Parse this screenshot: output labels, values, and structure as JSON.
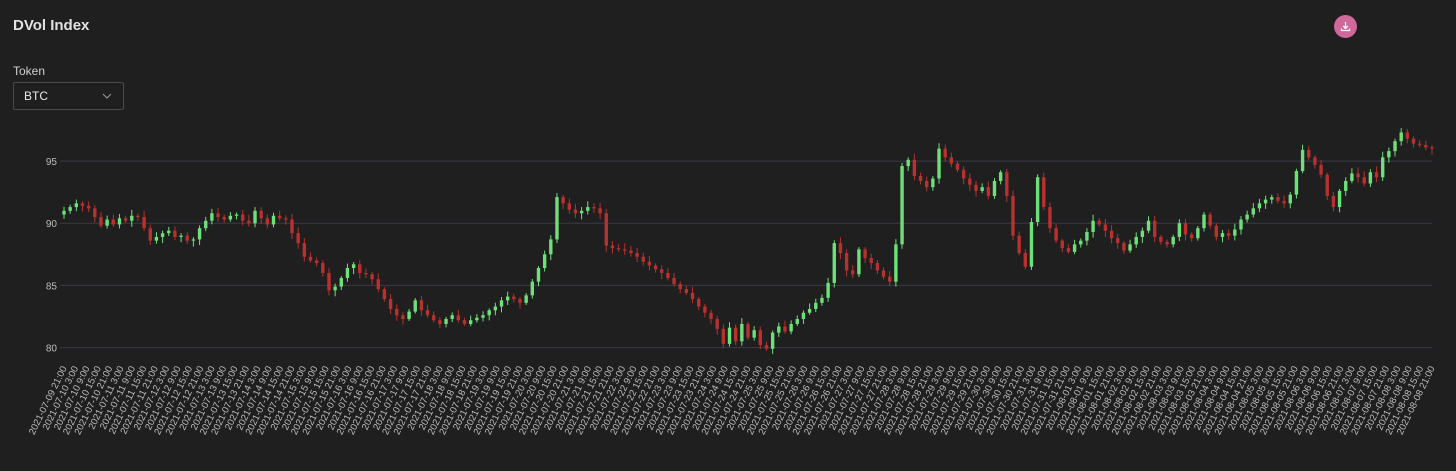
{
  "header": {
    "title": "DVol Index",
    "download_icon": "download-icon"
  },
  "filter": {
    "label": "Token",
    "selected": "BTC"
  },
  "colors": {
    "up": "#6ee07a",
    "down": "#b8312f",
    "grid": "#3a3a4a",
    "text": "#bdbdbd",
    "download_bg": "#d0689c"
  },
  "chart_data": {
    "type": "candlestick",
    "title": "DVol Index",
    "ylim": [
      79,
      97.5
    ],
    "yticks": [
      80,
      85,
      90,
      95
    ],
    "grid": "horizontal",
    "x_start": "2021-07-09 21:00",
    "x_end": "2021-08-08 21:00",
    "x_tick_interval_hours": 6,
    "close_series": [
      91.0,
      91.3,
      91.6,
      91.4,
      91.2,
      90.5,
      89.8,
      90.3,
      89.9,
      90.4,
      90.2,
      90.6,
      90.5,
      89.6,
      88.6,
      88.9,
      89.2,
      89.4,
      88.9,
      89.0,
      88.6,
      88.7,
      89.6,
      90.2,
      90.8,
      90.5,
      90.3,
      90.6,
      90.7,
      90.2,
      90.0,
      91.0,
      90.4,
      89.9,
      90.6,
      90.4,
      90.3,
      89.2,
      88.4,
      87.3,
      87.0,
      86.8,
      86.0,
      84.6,
      84.9,
      85.6,
      86.4,
      86.7,
      86.0,
      85.9,
      85.5,
      84.7,
      83.9,
      83.1,
      82.6,
      82.3,
      82.9,
      83.8,
      83.0,
      82.6,
      82.2,
      81.9,
      82.3,
      82.6,
      82.2,
      81.9,
      82.2,
      82.4,
      82.6,
      83.0,
      83.3,
      83.8,
      84.1,
      83.9,
      83.6,
      84.2,
      85.3,
      86.4,
      87.5,
      88.7,
      92.1,
      91.6,
      91.1,
      90.8,
      91.0,
      91.3,
      91.2,
      90.8,
      88.2,
      88.0,
      87.9,
      87.8,
      87.6,
      87.3,
      86.9,
      86.6,
      86.3,
      86.0,
      85.6,
      85.1,
      84.7,
      84.4,
      83.9,
      83.3,
      82.8,
      82.3,
      81.5,
      80.3,
      81.6,
      80.5,
      81.9,
      80.8,
      81.4,
      80.2,
      79.9,
      81.2,
      81.7,
      81.3,
      81.9,
      82.3,
      82.8,
      83.1,
      83.6,
      84.0,
      85.2,
      88.4,
      87.6,
      86.2,
      85.9,
      87.9,
      87.2,
      86.8,
      86.2,
      85.7,
      85.3,
      88.3,
      94.6,
      95.1,
      93.8,
      93.4,
      92.9,
      93.6,
      96.0,
      95.3,
      94.8,
      94.3,
      93.6,
      93.1,
      92.6,
      92.9,
      92.2,
      93.4,
      94.1,
      92.2,
      89.0,
      87.6,
      86.5,
      90.1,
      93.7,
      91.3,
      89.6,
      88.6,
      88.0,
      87.7,
      88.3,
      88.6,
      89.3,
      90.2,
      89.9,
      89.4,
      88.8,
      88.4,
      87.8,
      88.3,
      88.9,
      89.4,
      90.2,
      88.9,
      88.5,
      88.3,
      88.9,
      90.0,
      89.1,
      88.8,
      89.6,
      90.7,
      89.8,
      88.9,
      89.2,
      89.0,
      89.5,
      90.3,
      90.7,
      91.2,
      91.6,
      91.9,
      92.1,
      91.8,
      91.6,
      92.3,
      94.2,
      95.9,
      95.3,
      94.7,
      93.9,
      92.2,
      91.3,
      92.6,
      93.4,
      94.0,
      93.7,
      93.2,
      94.1,
      93.7,
      95.3,
      95.8,
      96.6,
      97.3,
      96.8,
      96.4,
      96.3,
      96.1,
      96.0
    ]
  }
}
